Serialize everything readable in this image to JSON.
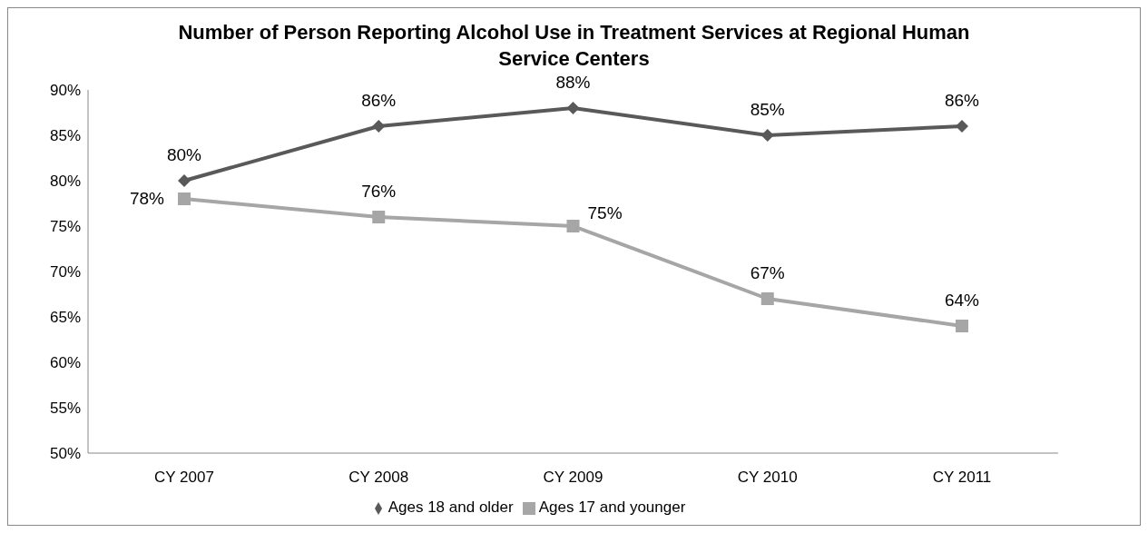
{
  "chart_data": {
    "type": "line",
    "title": "Number of Person Reporting Alcohol Use in Treatment Services at Regional Human Service Centers",
    "categories": [
      "CY 2007",
      "CY 2008",
      "CY 2009",
      "CY 2010",
      "CY 2011"
    ],
    "series": [
      {
        "name": "Ages 18 and older",
        "color": "#595959",
        "marker": "diamond",
        "values": [
          80,
          86,
          88,
          85,
          86
        ],
        "value_labels": [
          "80%",
          "86%",
          "88%",
          "85%",
          "86%"
        ]
      },
      {
        "name": "Ages 17 and younger",
        "color": "#a6a6a6",
        "marker": "square",
        "values": [
          78,
          76,
          75,
          67,
          64
        ],
        "value_labels": [
          "78%",
          "76%",
          "75%",
          "67%",
          "64%"
        ]
      }
    ],
    "ylim": [
      50,
      90
    ],
    "yticks": [
      {
        "value": 50,
        "label": "50%"
      },
      {
        "value": 55,
        "label": "55%"
      },
      {
        "value": 60,
        "label": "60%"
      },
      {
        "value": 65,
        "label": "65%"
      },
      {
        "value": 70,
        "label": "70%"
      },
      {
        "value": 75,
        "label": "75%"
      },
      {
        "value": 80,
        "label": "80%"
      },
      {
        "value": 85,
        "label": "85%"
      },
      {
        "value": 90,
        "label": "90%"
      }
    ],
    "grid": false,
    "legend": "bottom",
    "line_style": "solid"
  }
}
